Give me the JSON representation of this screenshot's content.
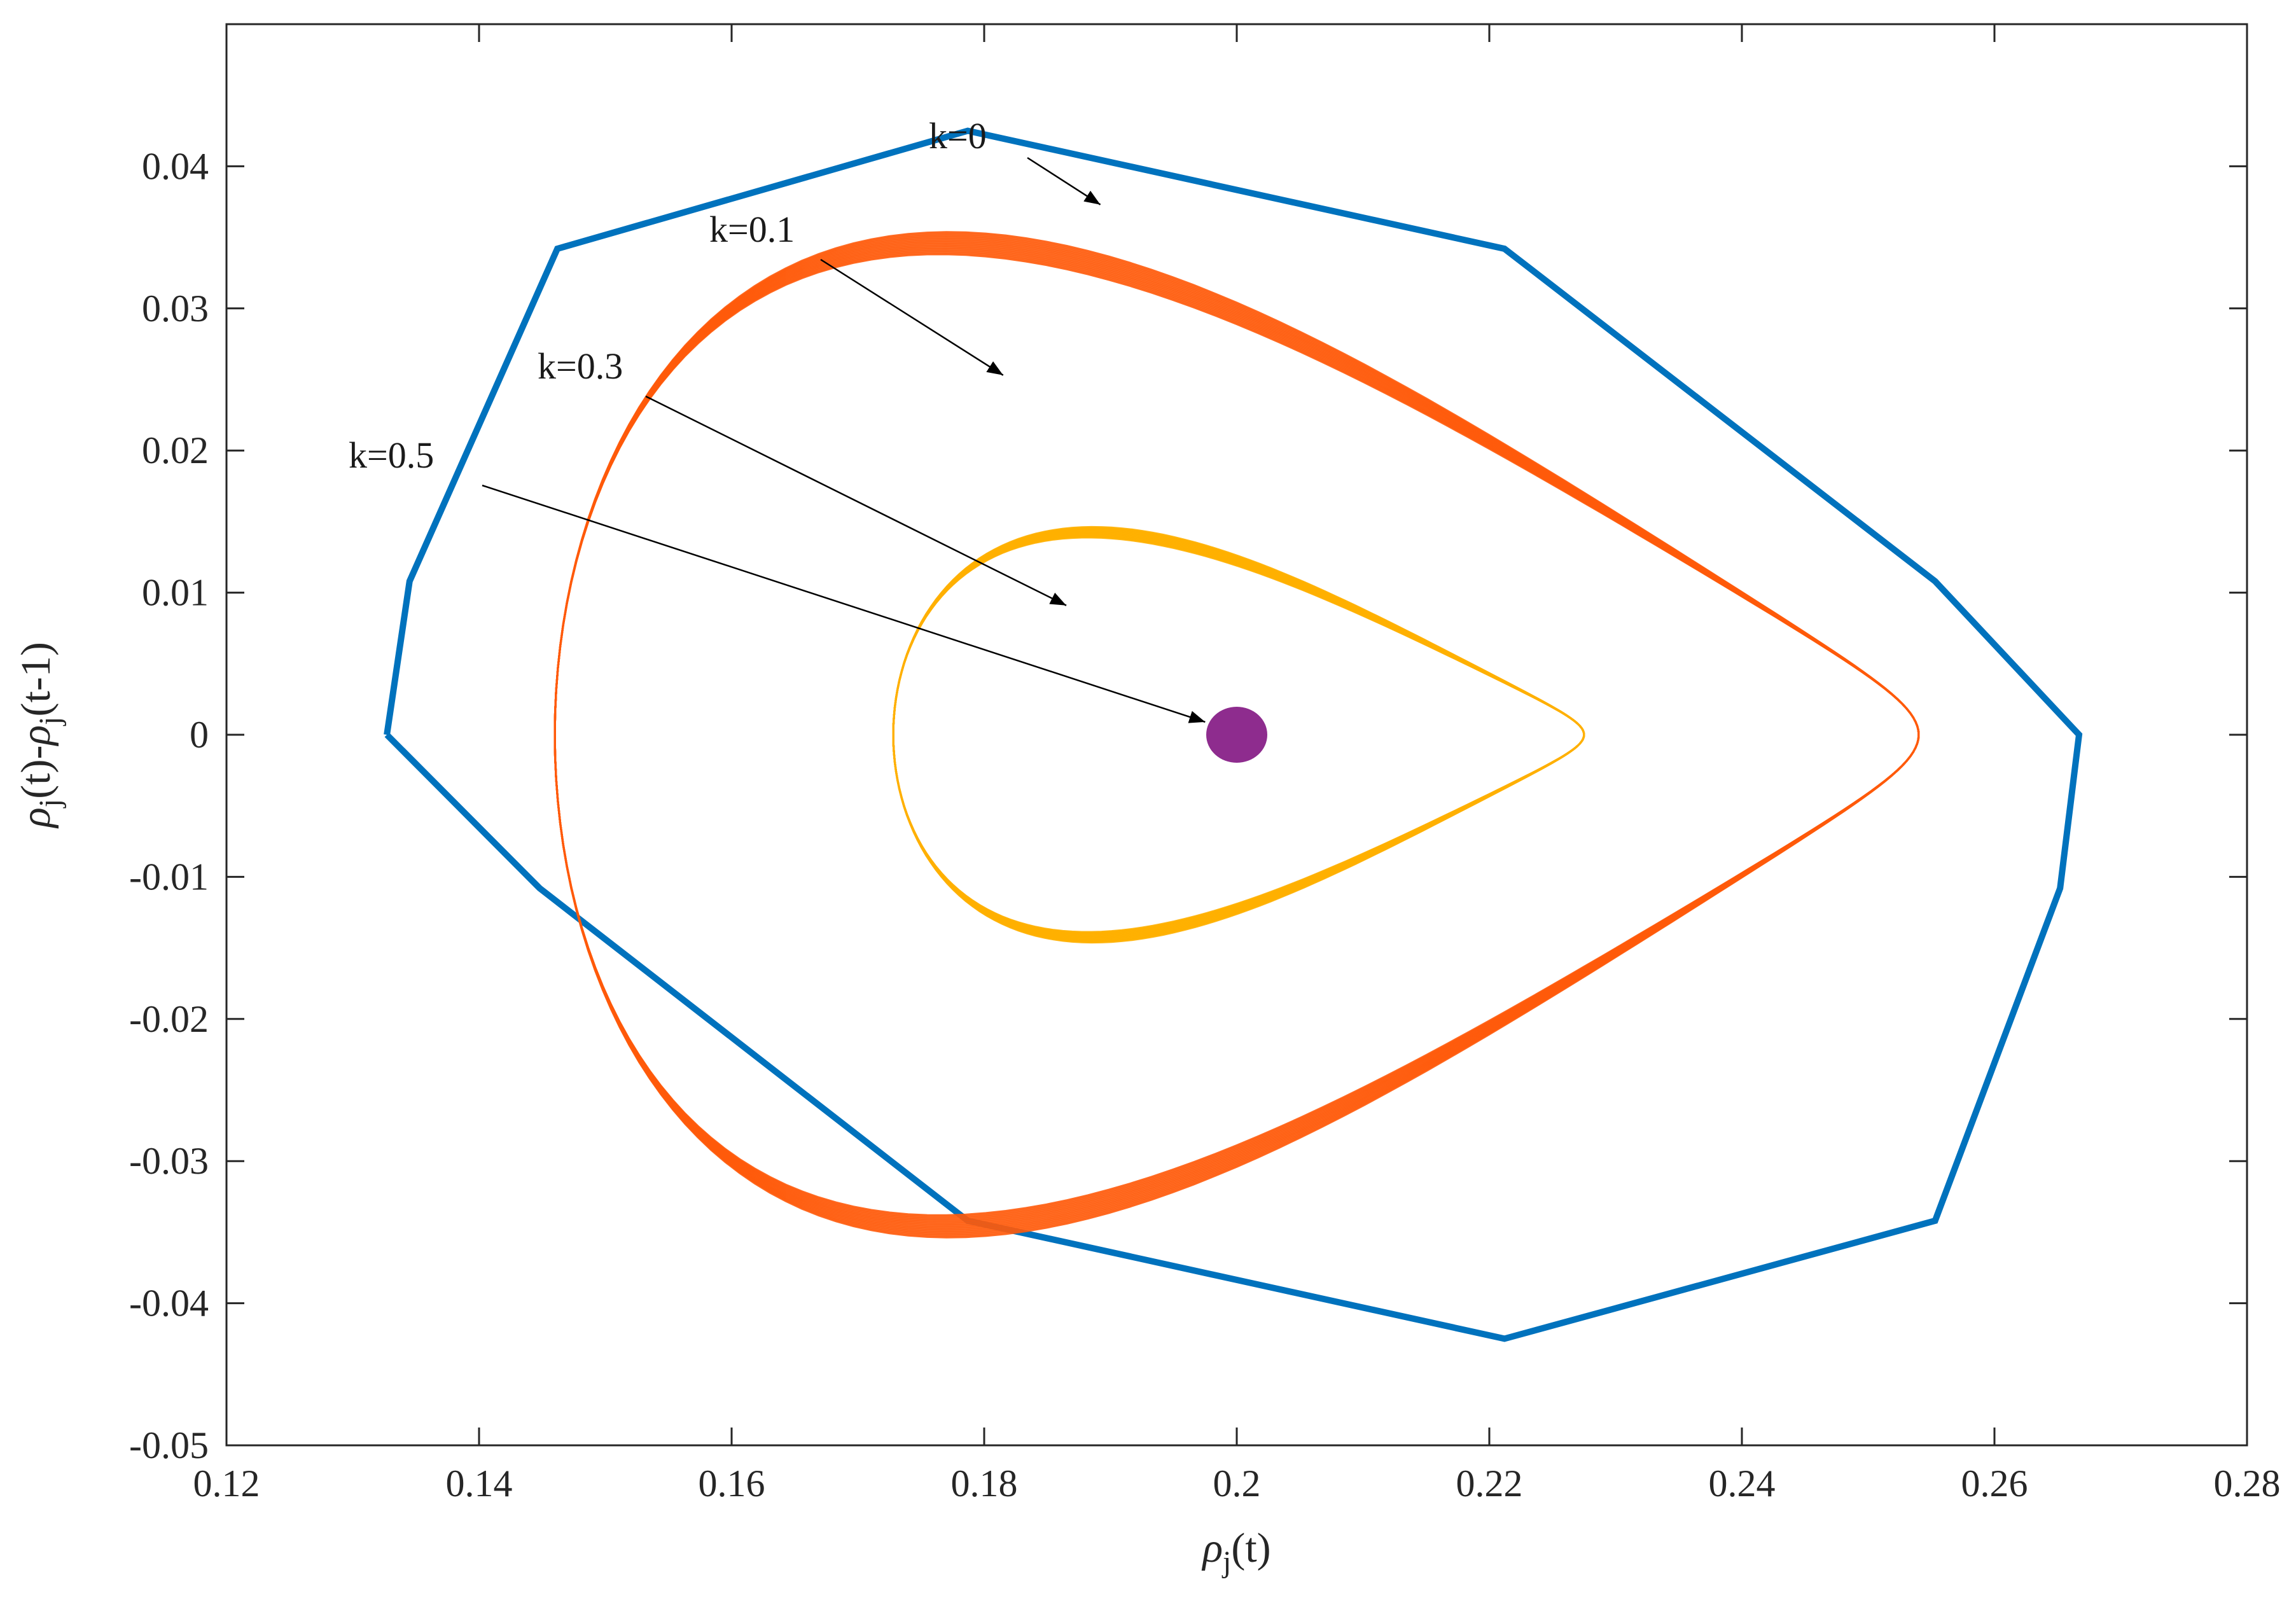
{
  "chart_data": {
    "type": "line",
    "title": "",
    "xlabel": {
      "base": "ρ",
      "sub": "j",
      "rest": "(t)"
    },
    "ylabel": {
      "p1_base": "ρ",
      "p1_sub": "j",
      "p1_rest": "(t)-",
      "p2_base": "ρ",
      "p2_sub": "j",
      "p2_rest": "(t-1)"
    },
    "xlim": [
      0.12,
      0.28
    ],
    "ylim": [
      -0.05,
      0.05
    ],
    "xticks": [
      0.12,
      0.14,
      0.16,
      0.18,
      0.2,
      0.22,
      0.24,
      0.26,
      0.28
    ],
    "xtick_labels": [
      "0.12",
      "0.14",
      "0.16",
      "0.18",
      "0.2",
      "0.22",
      "0.24",
      "0.26",
      "0.28"
    ],
    "yticks": [
      -0.05,
      -0.04,
      -0.03,
      -0.02,
      -0.01,
      0,
      0.01,
      0.02,
      0.03,
      0.04
    ],
    "ytick_labels": [
      "-0.05",
      "-0.04",
      "-0.03",
      "-0.02",
      "-0.01",
      "0",
      "0.01",
      "0.02",
      "0.03",
      "0.04"
    ],
    "grid": false,
    "series": [
      {
        "name": "k=0",
        "color": "#0072BD",
        "kind": "polygon",
        "points": [
          [
            0.1327,
            0.0
          ],
          [
            0.1345,
            0.0108
          ],
          [
            0.1462,
            0.0342
          ],
          [
            0.1787,
            0.0425
          ],
          [
            0.2212,
            0.0342
          ],
          [
            0.2553,
            0.0108
          ],
          [
            0.2667,
            0.0
          ],
          [
            0.2652,
            -0.0108
          ],
          [
            0.2553,
            -0.0342
          ],
          [
            0.2212,
            -0.0425
          ],
          [
            0.1787,
            -0.0342
          ],
          [
            0.1448,
            -0.0108
          ],
          [
            0.1327,
            0.0
          ]
        ]
      },
      {
        "name": "k=0.1",
        "color": "#FF5A0A",
        "kind": "spiral",
        "x_range": [
          0.146,
          0.254
        ],
        "amplitude": 0.0335,
        "band": 0.0017
      },
      {
        "name": "k=0.3",
        "color": "#FFB000",
        "kind": "spiral",
        "x_range": [
          0.1728,
          0.2275
        ],
        "amplitude": 0.0138,
        "band": 0.0008
      },
      {
        "name": "k=0.5",
        "color": "#8E2C8E",
        "kind": "fixed-point",
        "x": 0.2,
        "y": 0.0
      }
    ],
    "annotations": [
      {
        "text": "k=0",
        "points_to": [
          0.1892,
          0.0373
        ]
      },
      {
        "text": "k=0.1",
        "points_to": [
          0.1815,
          0.0253
        ]
      },
      {
        "text": "k=0.3",
        "points_to": [
          0.1865,
          0.0091
        ]
      },
      {
        "text": "k=0.5",
        "points_to": [
          0.1975,
          0.0009
        ]
      }
    ]
  }
}
